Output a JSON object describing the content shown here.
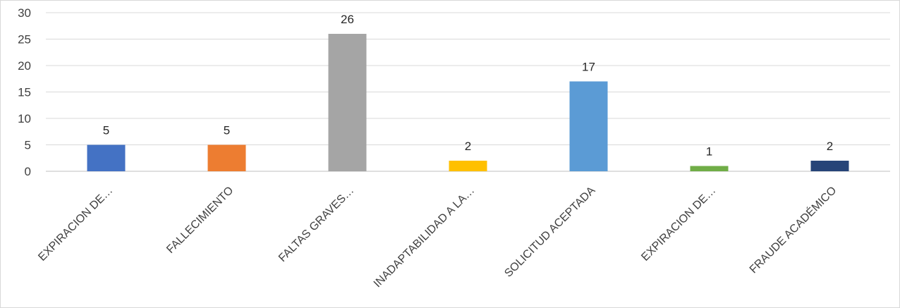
{
  "chart_data": {
    "type": "bar",
    "title": "",
    "xlabel": "",
    "ylabel": "",
    "categories": [
      "EXPIRACION DE…",
      "FALLECIMIENTO",
      "FALTAS GRAVES…",
      "INADAPTABILIDAD A LA…",
      "SOLICITUD ACEPTADA",
      "EXPIRACION DE…",
      "FRAUDE ACADÉMICO"
    ],
    "values": [
      5,
      5,
      26,
      2,
      17,
      1,
      2
    ],
    "colors": [
      "#4472C4",
      "#ED7D31",
      "#A5A5A5",
      "#FFC000",
      "#5B9BD5",
      "#70AD47",
      "#264478"
    ],
    "ylim": [
      0,
      30
    ],
    "yticks": [
      0,
      5,
      10,
      15,
      20,
      25,
      30
    ],
    "grid": true,
    "legend": "none",
    "data_labels": true
  }
}
